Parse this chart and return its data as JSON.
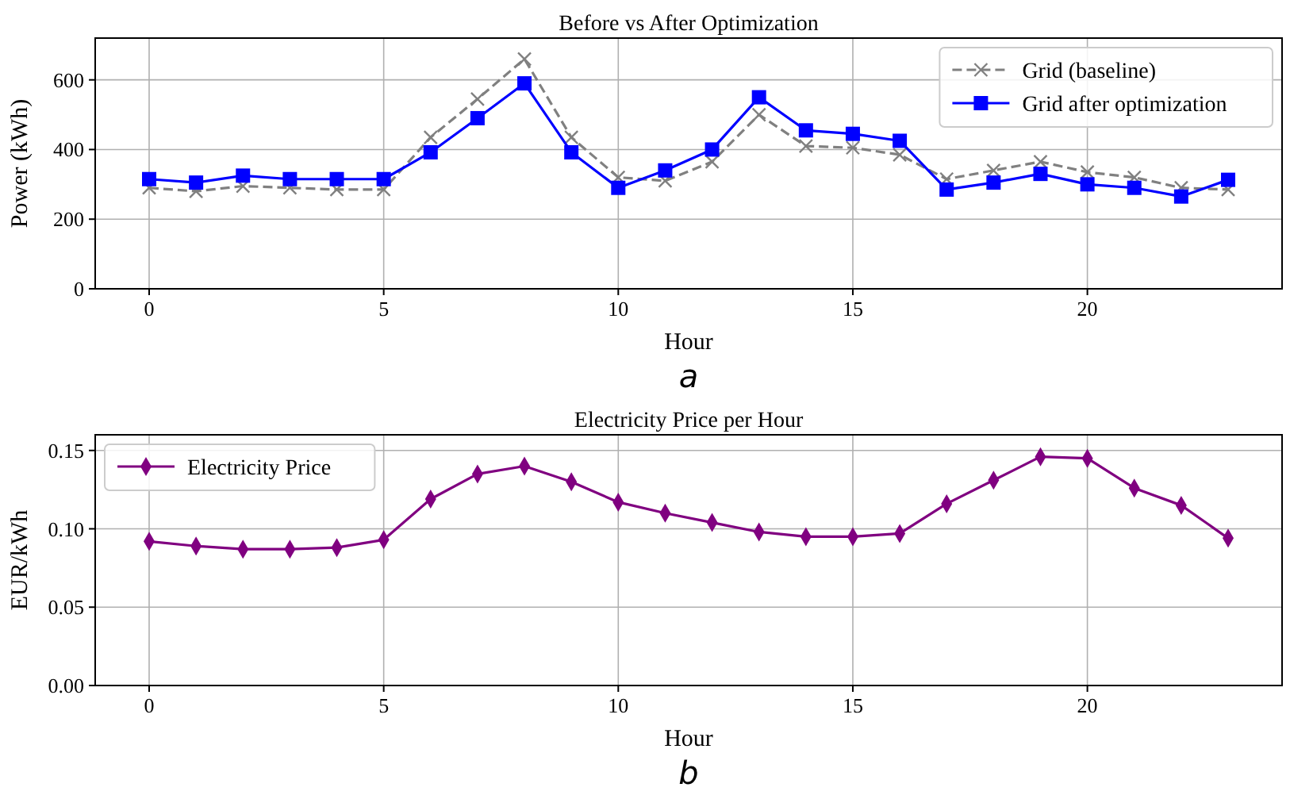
{
  "chart_data": [
    {
      "type": "line",
      "title": "Before vs After Optimization",
      "xlabel": "Hour",
      "ylabel": "Power (kWh)",
      "annotations": [
        "a"
      ],
      "x": [
        0,
        1,
        2,
        3,
        4,
        5,
        6,
        7,
        8,
        9,
        10,
        11,
        12,
        13,
        14,
        15,
        16,
        17,
        18,
        19,
        20,
        21,
        22,
        23
      ],
      "series": [
        {
          "name": "Grid (baseline)",
          "color": "#808080",
          "marker": "cross",
          "line_style": "dashed",
          "values": [
            290,
            280,
            295,
            290,
            285,
            285,
            435,
            545,
            660,
            435,
            320,
            310,
            365,
            500,
            410,
            405,
            385,
            315,
            340,
            365,
            335,
            320,
            290,
            285
          ]
        },
        {
          "name": "Grid after optimization",
          "color": "#0000ff",
          "marker": "square",
          "line_style": "solid",
          "values": [
            315,
            305,
            325,
            315,
            315,
            315,
            392,
            490,
            590,
            392,
            290,
            340,
            400,
            550,
            455,
            445,
            425,
            285,
            305,
            330,
            300,
            290,
            265,
            313
          ]
        }
      ],
      "xlim": [
        -1.15,
        24.15
      ],
      "xticks": [
        0,
        5,
        10,
        15,
        20
      ],
      "ylim": [
        0,
        720
      ],
      "yticks": [
        0,
        200,
        400,
        600
      ],
      "grid": true,
      "legend": "top right"
    },
    {
      "type": "line",
      "title": "Electricity Price per Hour",
      "xlabel": "Hour",
      "ylabel": "EUR/kWh",
      "annotations": [
        "b"
      ],
      "x": [
        0,
        1,
        2,
        3,
        4,
        5,
        6,
        7,
        8,
        9,
        10,
        11,
        12,
        13,
        14,
        15,
        16,
        17,
        18,
        19,
        20,
        21,
        22,
        23
      ],
      "series": [
        {
          "name": "Electricity Price",
          "color": "#800080",
          "marker": "diamond",
          "line_style": "solid",
          "values": [
            0.092,
            0.089,
            0.087,
            0.087,
            0.088,
            0.093,
            0.119,
            0.135,
            0.14,
            0.13,
            0.117,
            0.11,
            0.104,
            0.098,
            0.095,
            0.095,
            0.097,
            0.116,
            0.131,
            0.146,
            0.145,
            0.126,
            0.115,
            0.094
          ]
        }
      ],
      "xlim": [
        -1.15,
        24.15
      ],
      "xticks": [
        0,
        5,
        10,
        15,
        20
      ],
      "ylim": [
        0,
        0.16
      ],
      "yticks": [
        {
          "value": 0,
          "label": "0.00"
        },
        {
          "value": 0.05,
          "label": "0.05"
        },
        {
          "value": 0.1,
          "label": "0.10"
        },
        {
          "value": 0.15,
          "label": "0.15"
        }
      ],
      "grid": true,
      "legend": "top left"
    }
  ]
}
